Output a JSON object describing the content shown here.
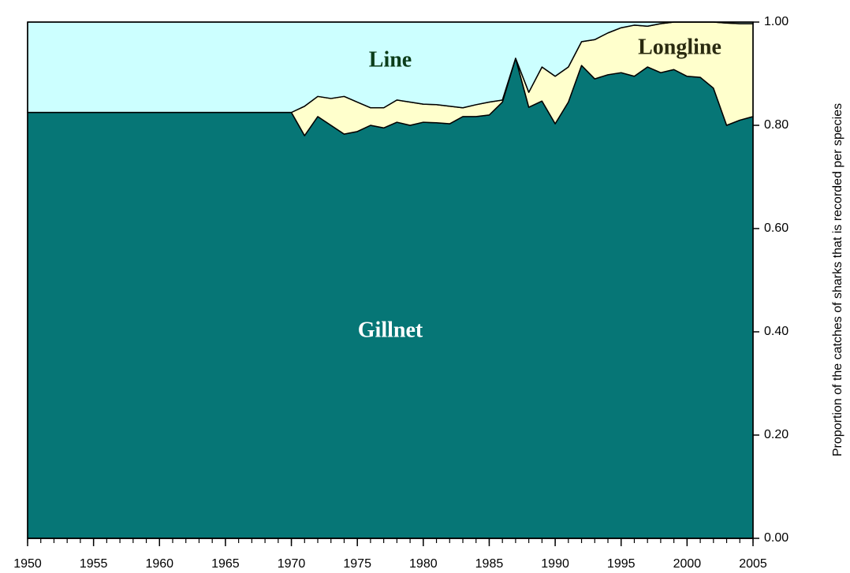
{
  "chart_data": {
    "type": "stacked_area",
    "y_label": "Proportion of the catches of sharks that is recorded per species",
    "x": [
      1950,
      1951,
      1952,
      1953,
      1954,
      1955,
      1956,
      1957,
      1958,
      1959,
      1960,
      1961,
      1962,
      1963,
      1964,
      1965,
      1966,
      1967,
      1968,
      1969,
      1970,
      1971,
      1972,
      1973,
      1974,
      1975,
      1976,
      1977,
      1978,
      1979,
      1980,
      1981,
      1982,
      1983,
      1984,
      1985,
      1986,
      1987,
      1988,
      1989,
      1990,
      1991,
      1992,
      1993,
      1994,
      1995,
      1996,
      1997,
      1998,
      1999,
      2000,
      2001,
      2002,
      2003,
      2004,
      2005
    ],
    "series": [
      {
        "name": "Gillnet",
        "color": "#067676",
        "values": [
          0.825,
          0.825,
          0.825,
          0.825,
          0.825,
          0.825,
          0.825,
          0.825,
          0.825,
          0.825,
          0.825,
          0.825,
          0.825,
          0.825,
          0.825,
          0.825,
          0.825,
          0.825,
          0.825,
          0.825,
          0.825,
          0.78,
          0.817,
          0.8,
          0.783,
          0.788,
          0.8,
          0.795,
          0.806,
          0.8,
          0.806,
          0.805,
          0.803,
          0.817,
          0.817,
          0.82,
          0.845,
          0.93,
          0.835,
          0.847,
          0.803,
          0.845,
          0.916,
          0.89,
          0.898,
          0.902,
          0.895,
          0.913,
          0.902,
          0.908,
          0.895,
          0.893,
          0.872,
          0.8,
          0.81,
          0.817
        ]
      },
      {
        "name": "Longline",
        "color": "#ffffcc",
        "values": [
          0,
          0,
          0,
          0,
          0,
          0,
          0,
          0,
          0,
          0,
          0,
          0,
          0,
          0,
          0,
          0,
          0,
          0,
          0,
          0,
          0,
          0.057,
          0.039,
          0.052,
          0.073,
          0.057,
          0.034,
          0.039,
          0.043,
          0.045,
          0.035,
          0.035,
          0.034,
          0.017,
          0.023,
          0.025,
          0.004,
          0,
          0.029,
          0.066,
          0.092,
          0.068,
          0.046,
          0.076,
          0.081,
          0.087,
          0.099,
          0.079,
          0.095,
          0.092,
          0.105,
          0.107,
          0.128,
          0.198,
          0.187,
          0.18
        ]
      },
      {
        "name": "Line",
        "color": "#ccffff",
        "values": [
          0.175,
          0.175,
          0.175,
          0.175,
          0.175,
          0.175,
          0.175,
          0.175,
          0.175,
          0.175,
          0.175,
          0.175,
          0.175,
          0.175,
          0.175,
          0.175,
          0.175,
          0.175,
          0.175,
          0.175,
          0.175,
          0.163,
          0.144,
          0.148,
          0.144,
          0.155,
          0.166,
          0.166,
          0.151,
          0.155,
          0.159,
          0.16,
          0.163,
          0.166,
          0.16,
          0.155,
          0.151,
          0.07,
          0.136,
          0.087,
          0.105,
          0.087,
          0.038,
          0.034,
          0.021,
          0.011,
          0.006,
          0.008,
          0.003,
          0,
          0,
          0,
          0,
          0.002,
          0.003,
          0.003
        ]
      }
    ],
    "xlim": [
      1950,
      2005
    ],
    "xticks": [
      1950,
      1955,
      1960,
      1965,
      1970,
      1975,
      1980,
      1985,
      1990,
      1995,
      2000,
      2005
    ],
    "ylim": [
      0,
      1
    ],
    "yticks": [
      {
        "value": 0,
        "label": "0.00"
      },
      {
        "value": 0.2,
        "label": "0.20"
      },
      {
        "value": 0.4,
        "label": "0.40"
      },
      {
        "value": 0.6,
        "label": "0.60"
      },
      {
        "value": 0.8,
        "label": "0.80"
      },
      {
        "value": 1,
        "label": "1.00"
      }
    ]
  }
}
